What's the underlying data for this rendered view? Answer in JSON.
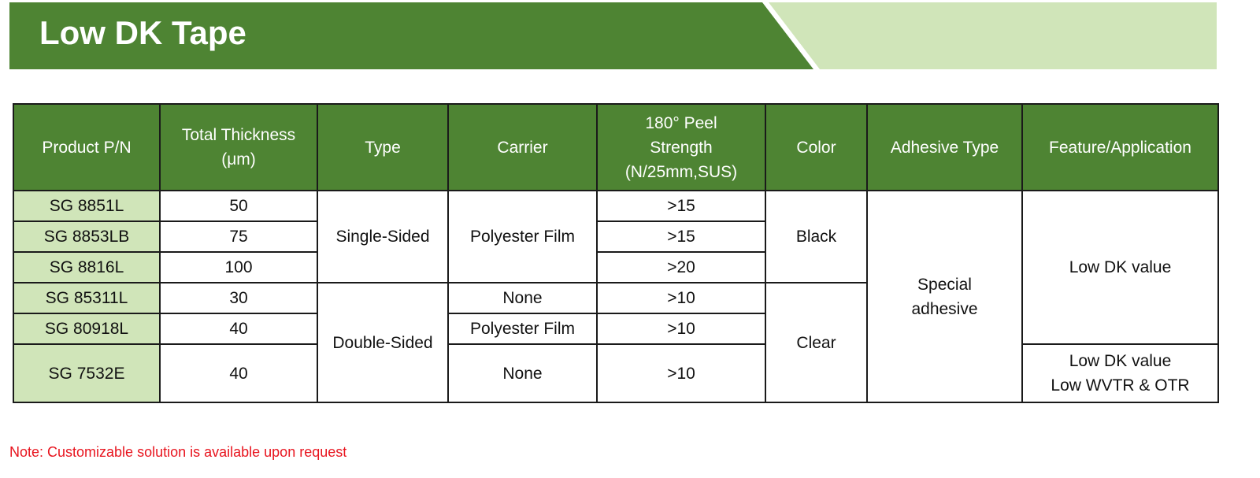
{
  "title": "Low DK Tape",
  "colors": {
    "banner_dark": "#4e8433",
    "banner_light": "#d0e5b9",
    "header_bg": "#4e8433",
    "pn_bg": "#d0e5b9",
    "note": "#e8141e"
  },
  "table": {
    "headers": [
      "Product P/N",
      "Total Thickness (μm)",
      "Type",
      "Carrier",
      "180° Peel Strength (N/25mm,SUS)",
      "Color",
      "Adhesive Type",
      "Feature/Application"
    ],
    "header_lines": {
      "thickness": [
        "Total Thickness",
        "(μm)"
      ],
      "peel": [
        "180° Peel",
        "Strength",
        "(N/25mm,SUS)"
      ]
    },
    "rows": [
      {
        "pn": "SG 8851L",
        "thickness": "50",
        "peel": ">15"
      },
      {
        "pn": "SG 8853LB",
        "thickness": "75",
        "peel": ">15"
      },
      {
        "pn": "SG 8816L",
        "thickness": "100",
        "peel": ">20"
      },
      {
        "pn": "SG 85311L",
        "thickness": "30",
        "peel": ">10"
      },
      {
        "pn": "SG 80918L",
        "thickness": "40",
        "peel": ">10"
      },
      {
        "pn": "SG 7532E",
        "thickness": "40",
        "peel": ">10"
      }
    ],
    "type": {
      "single": "Single-Sided",
      "double": "Double-Sided"
    },
    "carrier": [
      "Polyester Film",
      "None",
      "Polyester Film",
      "None"
    ],
    "color": {
      "black": "Black",
      "clear": "Clear"
    },
    "adhesive": [
      "Special",
      "adhesive"
    ],
    "feature": {
      "main": "Low DK value",
      "last": [
        "Low DK value",
        "Low WVTR & OTR"
      ]
    }
  },
  "note": "Note: Customizable solution is available upon request"
}
